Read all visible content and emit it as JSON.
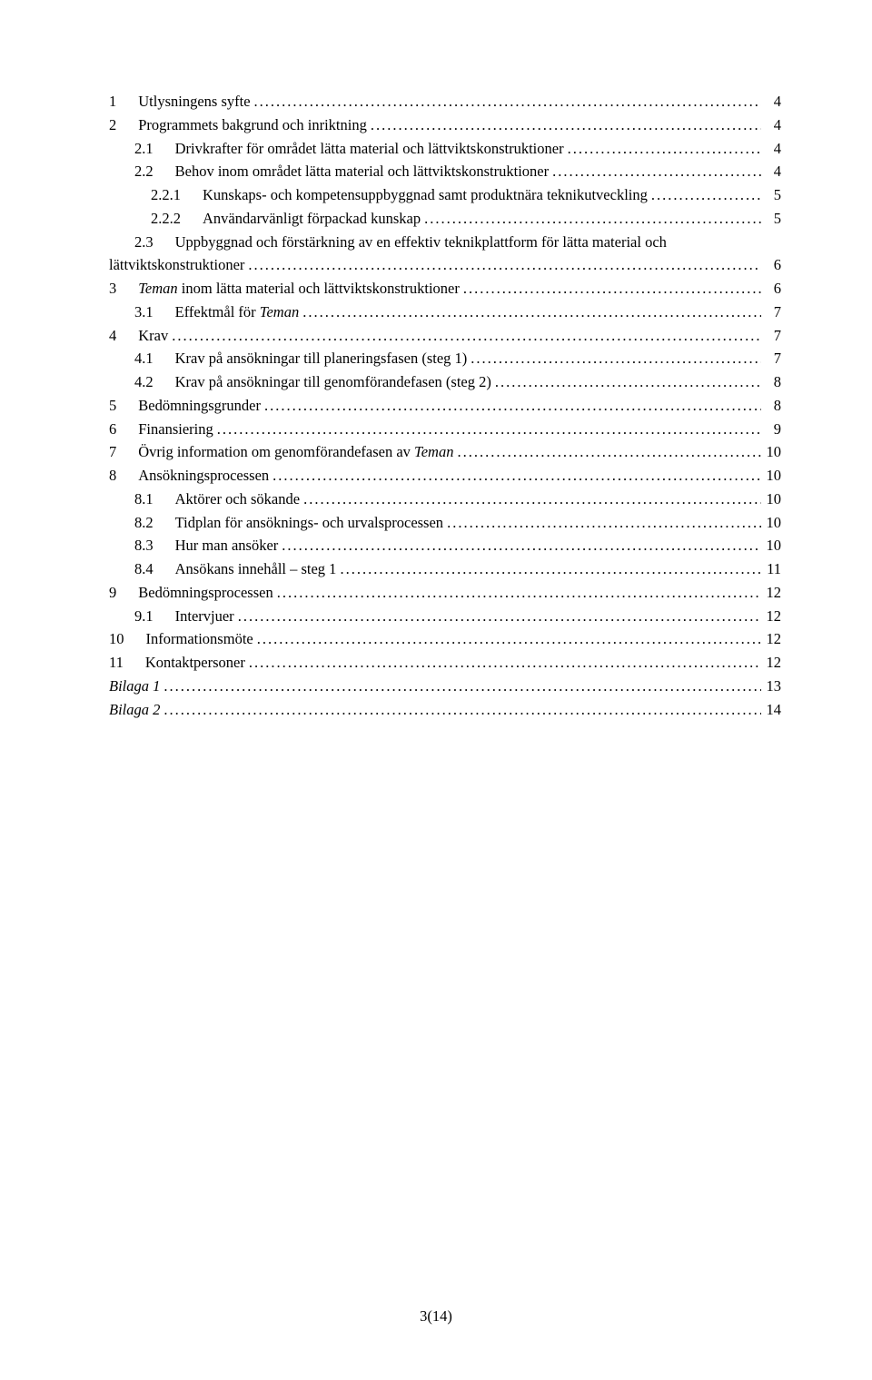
{
  "toc": [
    {
      "num": "1",
      "title": "Utlysningens syfte",
      "page": "4",
      "indent": 0,
      "italic": false
    },
    {
      "num": "2",
      "title": "Programmets bakgrund och inriktning",
      "page": "4",
      "indent": 0,
      "italic": false
    },
    {
      "num": "2.1",
      "title": "Drivkrafter för området lätta material och lättviktskonstruktioner",
      "page": "4",
      "indent": 1,
      "italic": false
    },
    {
      "num": "2.2",
      "title": "Behov inom området lätta material och lättviktskonstruktioner",
      "page": "4",
      "indent": 1,
      "italic": false
    },
    {
      "num": "2.2.1",
      "title": "Kunskaps- och kompetensuppbyggnad samt produktnära teknikutveckling",
      "page": "5",
      "indent": 2,
      "italic": false
    },
    {
      "num": "2.2.2",
      "title": "Användarvänligt förpackad kunskap",
      "page": "5",
      "indent": 2,
      "italic": false
    },
    {
      "num": "2.3",
      "title": "Uppbyggnad och förstärkning av en effektiv teknikplattform för lätta material och lättviktskonstruktioner",
      "page": "6",
      "indent": 1,
      "italic": false,
      "wrap": true
    },
    {
      "num": "3",
      "title": "Teman inom lätta material och lättviktskonstruktioner",
      "page": "6",
      "indent": 0,
      "italic": true,
      "partialItalic": true
    },
    {
      "num": "3.1",
      "title": "Effektmål för Teman",
      "page": "7",
      "indent": 1,
      "italic": true,
      "partialItalic2": true
    },
    {
      "num": "4",
      "title": "Krav",
      "page": "7",
      "indent": 0,
      "italic": false
    },
    {
      "num": "4.1",
      "title": "Krav på ansökningar till planeringsfasen (steg 1)",
      "page": "7",
      "indent": 1,
      "italic": false
    },
    {
      "num": "4.2",
      "title": "Krav på ansökningar till genomförandefasen (steg 2)",
      "page": "8",
      "indent": 1,
      "italic": false
    },
    {
      "num": "5",
      "title": "Bedömningsgrunder",
      "page": "8",
      "indent": 0,
      "italic": false
    },
    {
      "num": "6",
      "title": "Finansiering",
      "page": "9",
      "indent": 0,
      "italic": false
    },
    {
      "num": "7",
      "title": "Övrig information om genomförandefasen av Teman",
      "page": "10",
      "indent": 0,
      "italic": true,
      "partialItalic3": true
    },
    {
      "num": "8",
      "title": "Ansökningsprocessen",
      "page": "10",
      "indent": 0,
      "italic": false
    },
    {
      "num": "8.1",
      "title": "Aktörer och sökande",
      "page": "10",
      "indent": 1,
      "italic": false
    },
    {
      "num": "8.2",
      "title": "Tidplan för ansöknings- och urvalsprocessen",
      "page": "10",
      "indent": 1,
      "italic": false
    },
    {
      "num": "8.3",
      "title": "Hur man ansöker",
      "page": "10",
      "indent": 1,
      "italic": false
    },
    {
      "num": "8.4",
      "title": "Ansökans innehåll – steg 1",
      "page": "11",
      "indent": 1,
      "italic": false
    },
    {
      "num": "9",
      "title": "Bedömningsprocessen",
      "page": "12",
      "indent": 0,
      "italic": false
    },
    {
      "num": "9.1",
      "title": "Intervjuer",
      "page": "12",
      "indent": 1,
      "italic": false
    },
    {
      "num": "10",
      "title": "Informationsmöte",
      "page": "12",
      "indent": 0,
      "italic": false
    },
    {
      "num": "11",
      "title": "Kontaktpersoner",
      "page": "12",
      "indent": 0,
      "italic": false
    },
    {
      "num": "",
      "title": "Bilaga 1",
      "page": "13",
      "indent": 0,
      "italic": true,
      "nonum": true
    },
    {
      "num": "",
      "title": "Bilaga 2",
      "page": "14",
      "indent": 0,
      "italic": true,
      "nonum": true
    }
  ],
  "footer": "3(14)"
}
